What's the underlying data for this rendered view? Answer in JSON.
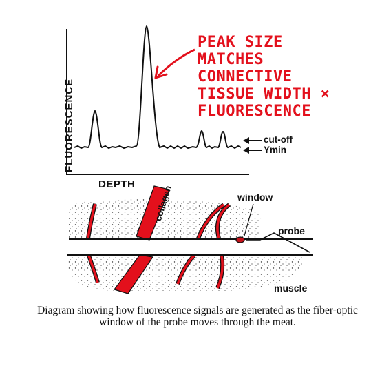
{
  "graph": {
    "y_axis_label": "FLUORESCENCE",
    "x_axis_label": "DEPTH",
    "annotation": "PEAK SIZE\nMATCHES\nCONNECTIVE\nTISSUE WIDTH ×\nFLUORESCENCE",
    "annotation_color": "#e3101c",
    "cutoff_label": "cut-off",
    "ymin_label": "Ymin"
  },
  "schematic": {
    "collagen_label": "collagen",
    "window_label": "window",
    "probe_label": "probe",
    "muscle_label": "muscle",
    "tissue_color": "#e3101c"
  },
  "caption": "Diagram showing how fluorescence signals are generated as the fiber-optic window of the probe moves through the meat."
}
